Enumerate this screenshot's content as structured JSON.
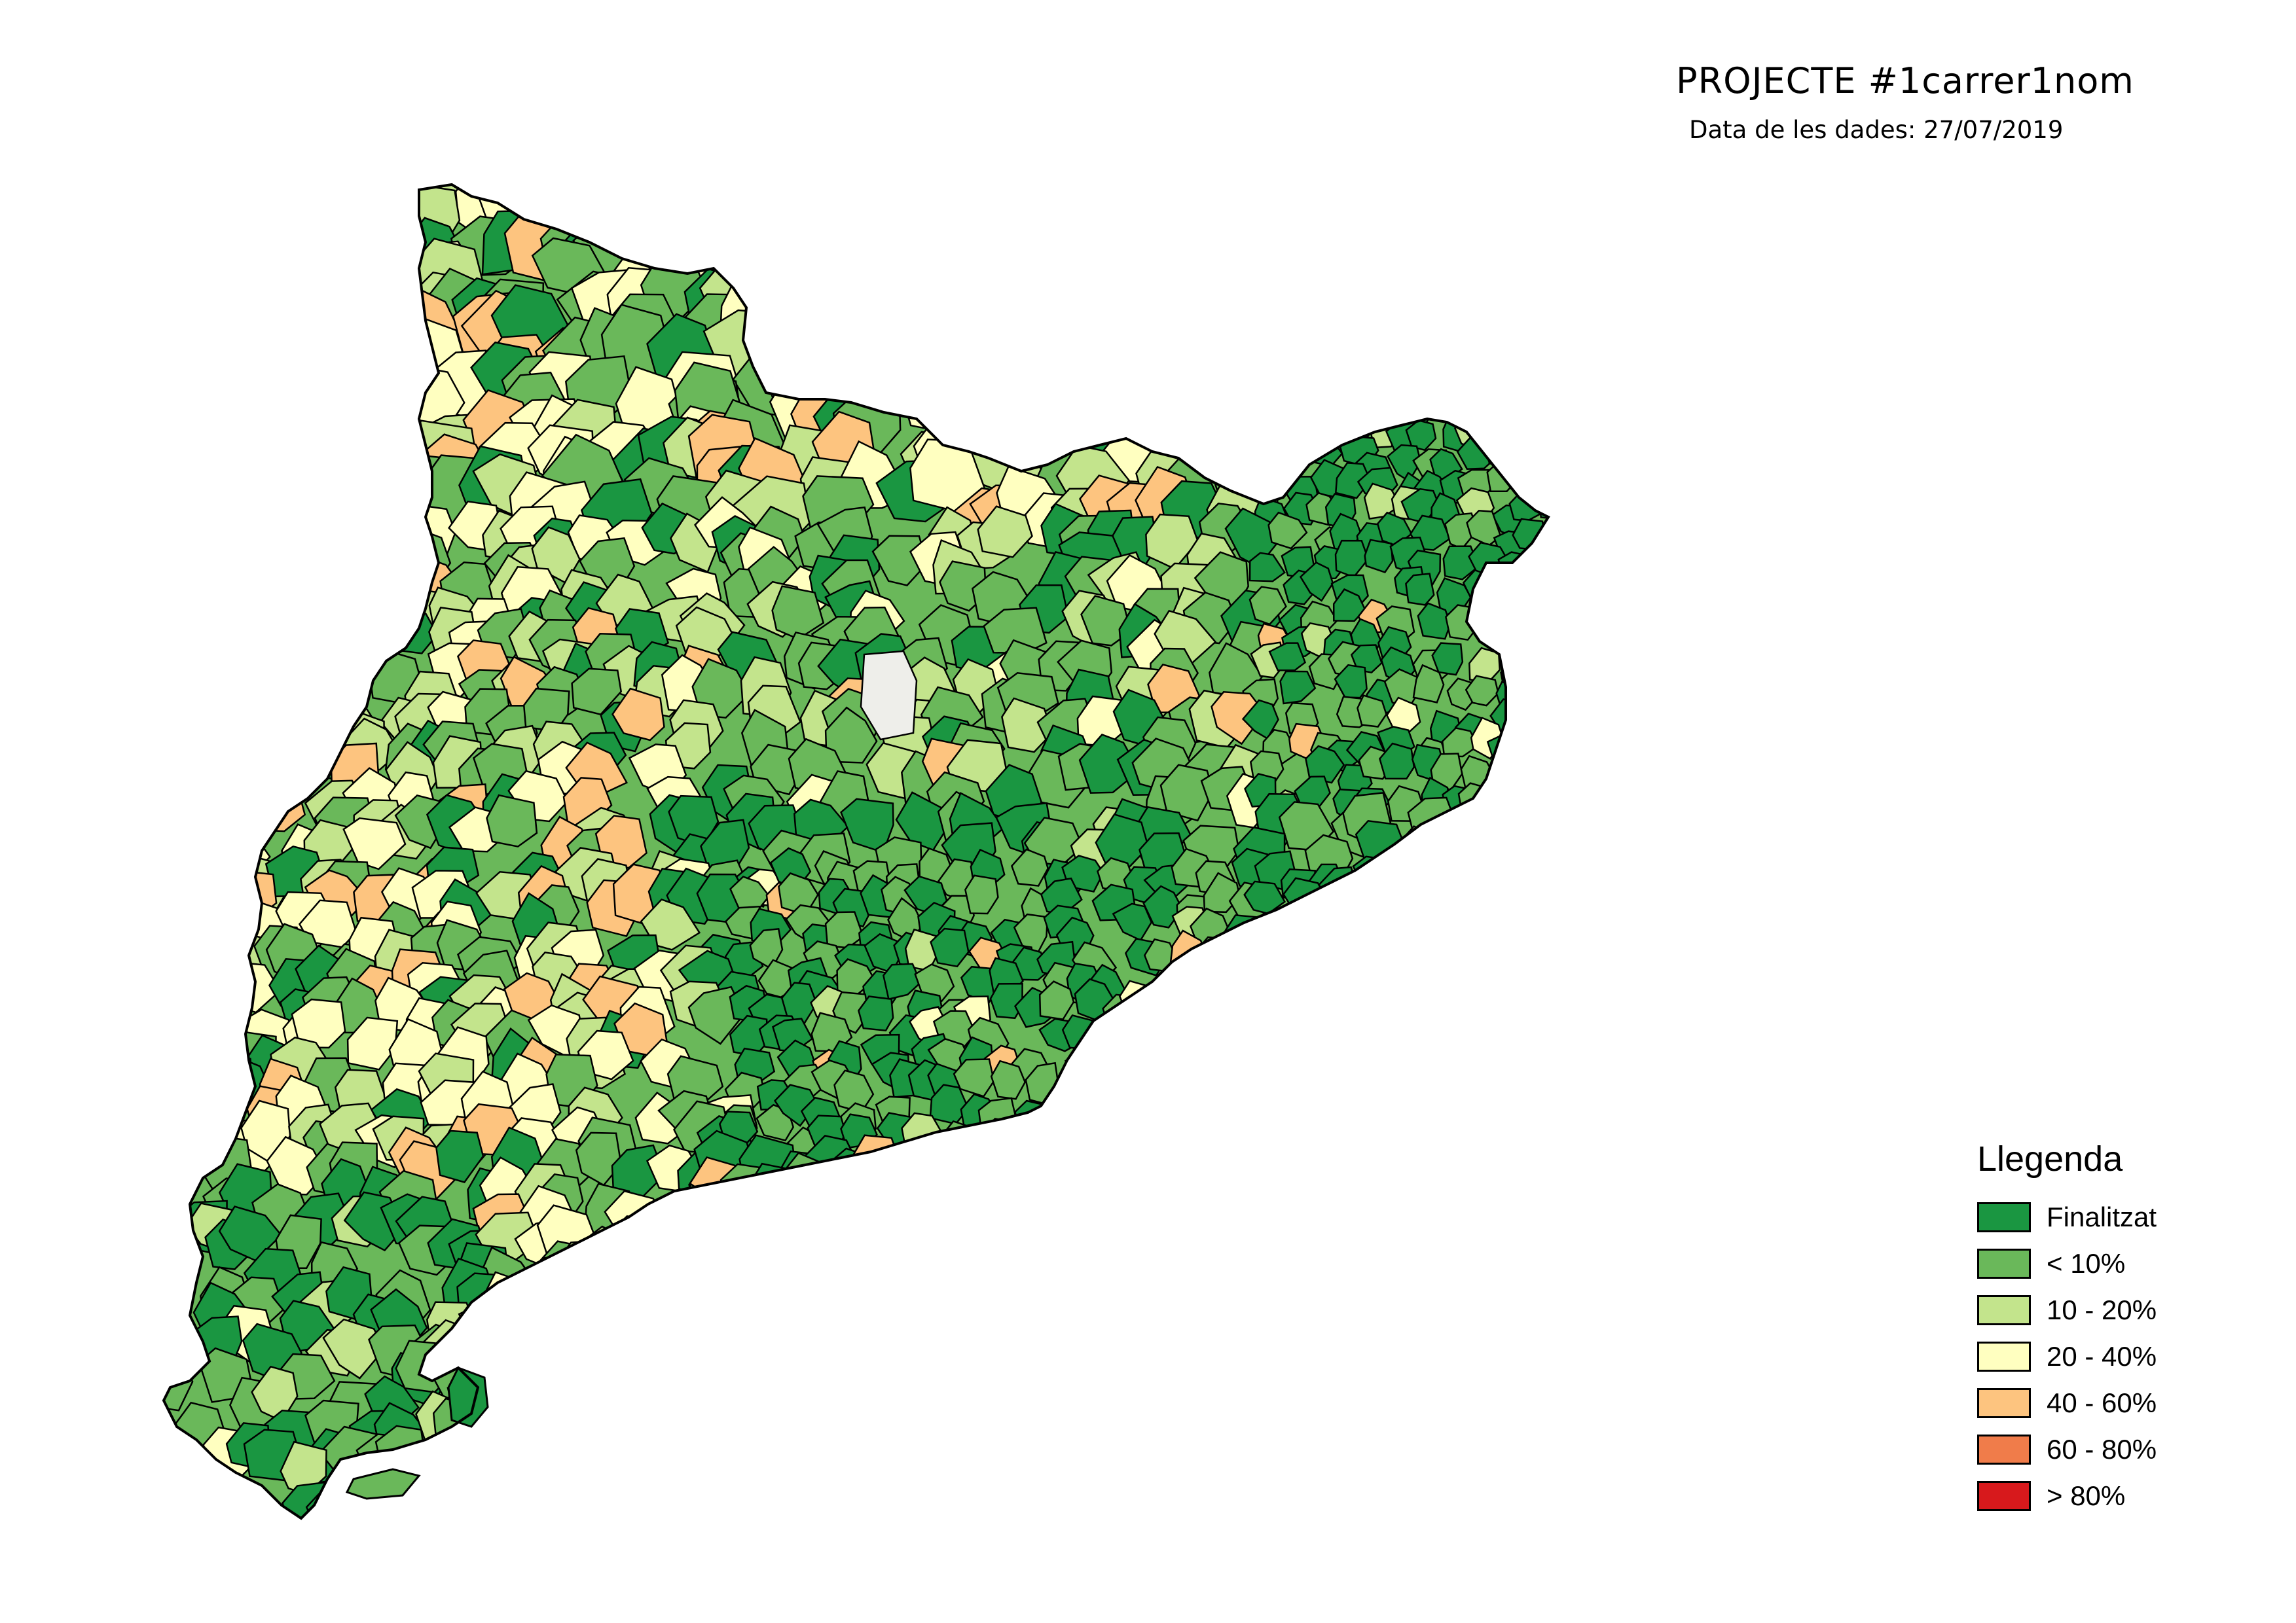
{
  "header": {
    "title": "PROJECTE #1carrer1nom",
    "subtitle": "Data de les dades: 27/07/2019"
  },
  "legend": {
    "title": "Llegenda",
    "items": [
      {
        "label": "Finalitzat",
        "color": "#1a9641"
      },
      {
        "label": "< 10%",
        "color": "#6ab85a"
      },
      {
        "label": "10 - 20%",
        "color": "#c3e48c"
      },
      {
        "label": "20 - 40%",
        "color": "#ffffc0"
      },
      {
        "label": "40 - 60%",
        "color": "#fdc47f"
      },
      {
        "label": "60 - 80%",
        "color": "#f07c4a"
      },
      {
        "label": "> 80%",
        "color": "#d7191c"
      }
    ]
  },
  "map": {
    "region": "catalonia-municipalities",
    "no_data_color": "#eeeeea",
    "border_color": "#000000"
  }
}
